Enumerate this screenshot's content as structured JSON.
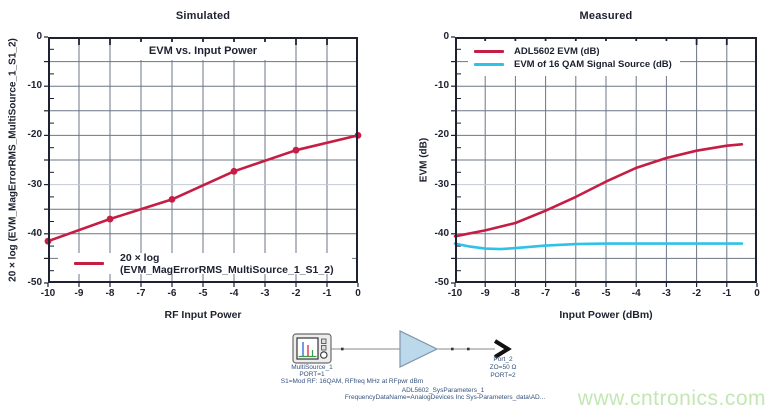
{
  "watermark": "www.cntronics.com",
  "colors": {
    "accent_red": "#c41e45",
    "accent_cyan": "#2fc2e9",
    "grid": "#6d7585",
    "grid_light": "#c5c9d2",
    "axis": "#1d2130",
    "diagram_text": "#35527d",
    "diagram_wire": "#8a8a8a",
    "amp_fill": "#bcd9eb",
    "amp_stroke": "#7f95aa",
    "watermark_green": "#c3e7b3"
  },
  "chart_data": [
    {
      "type": "line",
      "title": "Simulated",
      "inner_title": "EVM vs. Input Power",
      "xlabel": "RF Input Power",
      "ylabel": "20 × log (EVM_MagErrorRMS_MultiSource_1_S1_2)",
      "xlim": [
        -10,
        0
      ],
      "ylim": [
        -50,
        0
      ],
      "xticks": [
        -10,
        -9,
        -8,
        -7,
        -6,
        -5,
        -4,
        -3,
        -2,
        -1,
        0
      ],
      "yticks": [
        0,
        -10,
        -20,
        -30,
        -40,
        -50
      ],
      "grid": true,
      "light_gridlines": [
        -30
      ],
      "legend_position": "bottom-inside",
      "series": [
        {
          "name": "20 × log (EVM_MagErrorRMS_MultiSource_1_S1_2)",
          "color": "#c41e45",
          "markers": true,
          "x": [
            -10,
            -8,
            -6,
            -4,
            -2,
            0
          ],
          "y": [
            -41.5,
            -37,
            -33,
            -27.3,
            -23,
            -20
          ]
        }
      ]
    },
    {
      "type": "line",
      "title": "Measured",
      "inner_title": "",
      "xlabel": "Input Power (dBm)",
      "ylabel": "EVM (dB)",
      "xlim": [
        -10,
        0
      ],
      "ylim": [
        -50,
        0
      ],
      "xticks": [
        -10,
        -9,
        -8,
        -7,
        -6,
        -5,
        -4,
        -3,
        -2,
        -1,
        0
      ],
      "yticks": [
        0,
        -10,
        -20,
        -30,
        -40,
        -50
      ],
      "grid": true,
      "light_gridlines": [
        -30
      ],
      "legend_position": "top-left-inside",
      "series": [
        {
          "name": "ADL5602 EVM (dB)",
          "color": "#c41e45",
          "markers": false,
          "x": [
            -10,
            -9,
            -8,
            -7,
            -6,
            -5,
            -4,
            -3,
            -2,
            -1,
            -0.5
          ],
          "y": [
            -40.5,
            -39.3,
            -37.8,
            -35.3,
            -32.5,
            -29.4,
            -26.6,
            -24.6,
            -23.1,
            -22.1,
            -21.8
          ]
        },
        {
          "name": "EVM of 16 QAM Signal Source (dB)",
          "color": "#2fc2e9",
          "markers": false,
          "x": [
            -10,
            -9.5,
            -9,
            -8.5,
            -8,
            -7,
            -6,
            -5,
            -4,
            -3,
            -2,
            -1,
            -0.5
          ],
          "y": [
            -42.0,
            -42.6,
            -43.0,
            -43.1,
            -42.9,
            -42.4,
            -42.1,
            -42.0,
            -42.0,
            -42.0,
            -42.0,
            -42.0,
            -42.0
          ]
        }
      ]
    }
  ],
  "diagram": {
    "source_name": "MultiSource_1",
    "source_port": "PORT=1",
    "source_params": "S1=Mod RF: 16QAM, RFfreq MHz at RFpwr dBm",
    "amp_name": "ADL5602_SysParameters_1",
    "amp_params": "FrequencyDataName=AnalogDevices Inc Sys-Parameters_data\\AD...",
    "out_name": "Port_2",
    "out_z": "ZO=50 Ω",
    "out_port": "PORT=2"
  }
}
